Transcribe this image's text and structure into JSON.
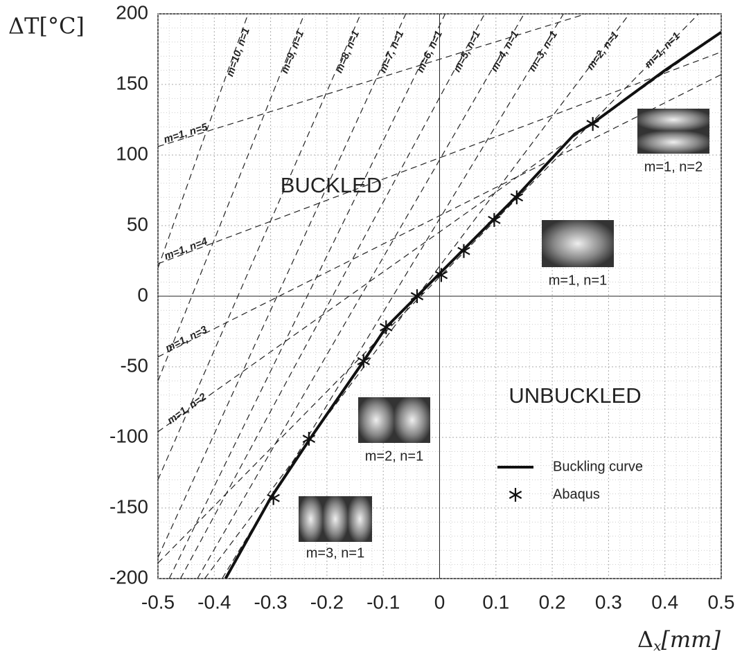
{
  "chart_data": {
    "type": "line",
    "xlabel": {
      "base": "Δ",
      "sub": "x",
      "rest": "[mm]"
    },
    "ylabel": "ΔT[°C]",
    "xlim": [
      -0.5,
      0.5
    ],
    "ylim": [
      -200,
      200
    ],
    "xticks": [
      -0.5,
      -0.4,
      -0.3,
      -0.2,
      -0.1,
      0,
      0.1,
      0.2,
      0.3,
      0.4,
      0.5
    ],
    "yticks": [
      -200,
      -150,
      -100,
      -50,
      0,
      50,
      100,
      150,
      200
    ],
    "grid": true,
    "minor_grid": true,
    "legend": "lower right",
    "annotations": [
      "BUCKLED",
      "UNBUCKLED"
    ],
    "mode_images": [
      "m=1, n=2",
      "m=1, n=1",
      "m=2, n=1",
      "m=3, n=1"
    ],
    "series": [
      {
        "name": "m=1, n=1",
        "style": "dashed",
        "color": "#222",
        "x": [
          -0.5,
          0.46
        ],
        "values": [
          -189,
          200
        ]
      },
      {
        "name": "m=1, n=2",
        "style": "dashed",
        "color": "#222",
        "x": [
          -0.5,
          0.5
        ],
        "values": [
          -96,
          187
        ]
      },
      {
        "name": "m=1, n=3",
        "style": "dashed",
        "color": "#222",
        "x": [
          -0.5,
          0.5
        ],
        "values": [
          -43,
          157
        ]
      },
      {
        "name": "m=1, n=4",
        "style": "dashed",
        "color": "#222",
        "x": [
          -0.5,
          0.5
        ],
        "values": [
          23,
          173
        ]
      },
      {
        "name": "m=1, n=5",
        "style": "dashed",
        "color": "#222",
        "x": [
          -0.5,
          0.26
        ],
        "values": [
          106,
          200
        ]
      },
      {
        "name": "m=2, n=1",
        "style": "dashed",
        "color": "#222",
        "x": [
          -0.417,
          0.337
        ],
        "values": [
          -200,
          200
        ]
      },
      {
        "name": "m=3, n=1",
        "style": "dashed",
        "color": "#222",
        "x": [
          -0.386,
          0.22
        ],
        "values": [
          -200,
          200
        ]
      },
      {
        "name": "m=4, n=1",
        "style": "dashed",
        "color": "#222",
        "x": [
          -0.43,
          0.15
        ],
        "values": [
          -200,
          200
        ]
      },
      {
        "name": "m=5, n=1",
        "style": "dashed",
        "color": "#222",
        "x": [
          -0.46,
          0.08
        ],
        "values": [
          -200,
          200
        ]
      },
      {
        "name": "m=6, n=1",
        "style": "dashed",
        "color": "#222",
        "x": [
          -0.48,
          0.01
        ],
        "values": [
          -200,
          200
        ]
      },
      {
        "name": "m=7, n=1",
        "style": "dashed",
        "color": "#222",
        "x": [
          -0.5,
          -0.06
        ],
        "values": [
          -185,
          200
        ]
      },
      {
        "name": "m=8, n=1",
        "style": "dashed",
        "color": "#222",
        "x": [
          -0.5,
          -0.14
        ],
        "values": [
          -130,
          200
        ]
      },
      {
        "name": "m=9, n=1",
        "style": "dashed",
        "color": "#222",
        "x": [
          -0.5,
          -0.24
        ],
        "values": [
          -60,
          200
        ]
      },
      {
        "name": "m=10, n=1",
        "style": "dashed",
        "color": "#222",
        "x": [
          -0.5,
          -0.34
        ],
        "values": [
          20,
          200
        ]
      },
      {
        "name": "Buckling curve",
        "style": "solid",
        "color": "#111",
        "x": [
          -0.38,
          -0.3,
          -0.23,
          -0.135,
          -0.095,
          -0.04,
          0,
          0.04,
          0.095,
          0.135,
          0.24,
          0.27,
          0.4,
          0.5
        ],
        "values": [
          -200,
          -143,
          -101,
          -46,
          -22,
          0,
          16,
          32,
          54,
          70,
          115,
          122,
          160,
          187
        ]
      },
      {
        "name": "Abaqus",
        "style": "marker",
        "color": "#111",
        "x": [
          -0.295,
          -0.232,
          -0.135,
          -0.095,
          -0.04,
          0.003,
          0.043,
          0.097,
          0.137,
          0.272
        ],
        "values": [
          -143,
          -101,
          -46,
          -22,
          0,
          15,
          32,
          54,
          70,
          122
        ]
      }
    ]
  }
}
